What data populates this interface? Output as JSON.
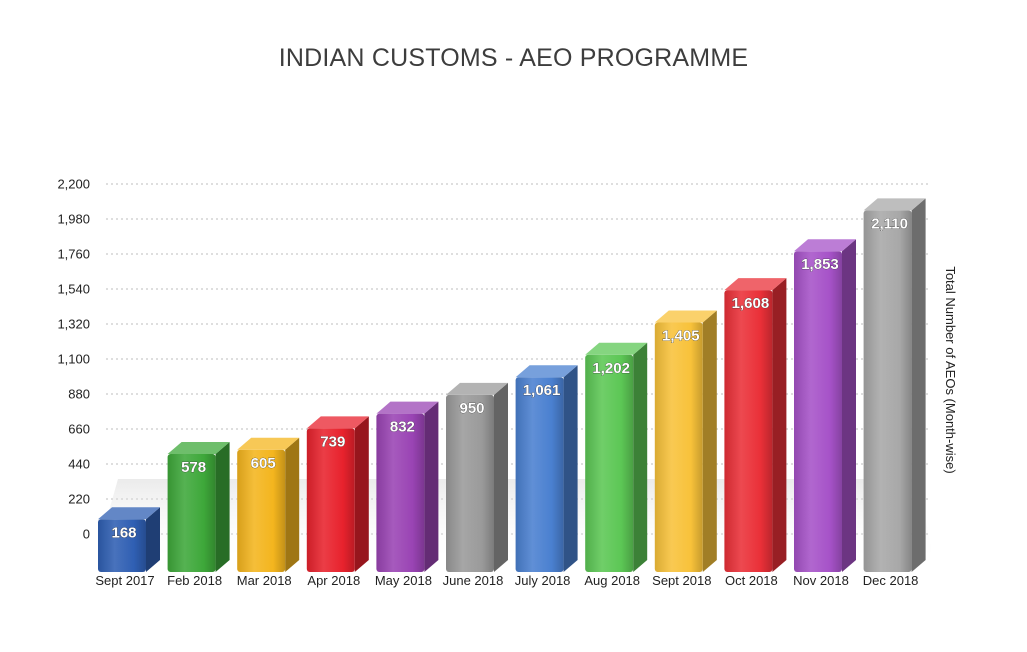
{
  "chart_data": {
    "type": "bar",
    "title": "INDIAN CUSTOMS - AEO PROGRAMME",
    "xlabel": "",
    "ylabel": "Total Number of AEOs (Month-wise)",
    "ylim": [
      0,
      2200
    ],
    "yticks": [
      0,
      220,
      440,
      660,
      880,
      1100,
      1320,
      1540,
      1760,
      1980,
      2200
    ],
    "ytick_labels": [
      "0",
      "220",
      "440",
      "660",
      "880",
      "1,100",
      "1,320",
      "1,540",
      "1,760",
      "1,980",
      "2,200"
    ],
    "grid": true,
    "categories": [
      "Sept 2017",
      "Feb 2018",
      "Mar 2018",
      "Apr 2018",
      "May 2018",
      "June 2018",
      "July 2018",
      "Aug 2018",
      "Sept 2018",
      "Oct 2018",
      "Nov 2018",
      "Dec 2018"
    ],
    "values": [
      168,
      578,
      605,
      739,
      832,
      950,
      1061,
      1202,
      1405,
      1608,
      1853,
      2110
    ],
    "value_labels": [
      "168",
      "578",
      "605",
      "739",
      "832",
      "950",
      "1,061",
      "1,202",
      "1,405",
      "1,608",
      "1,853",
      "2,110"
    ],
    "colors": [
      "#2f5fb3",
      "#3ea83a",
      "#f4b51e",
      "#e8222d",
      "#9a44b4",
      "#9a9a9a",
      "#4a80d0",
      "#5cc755",
      "#f8c23a",
      "#ea3038",
      "#a652c8",
      "#a8a8a8"
    ]
  }
}
